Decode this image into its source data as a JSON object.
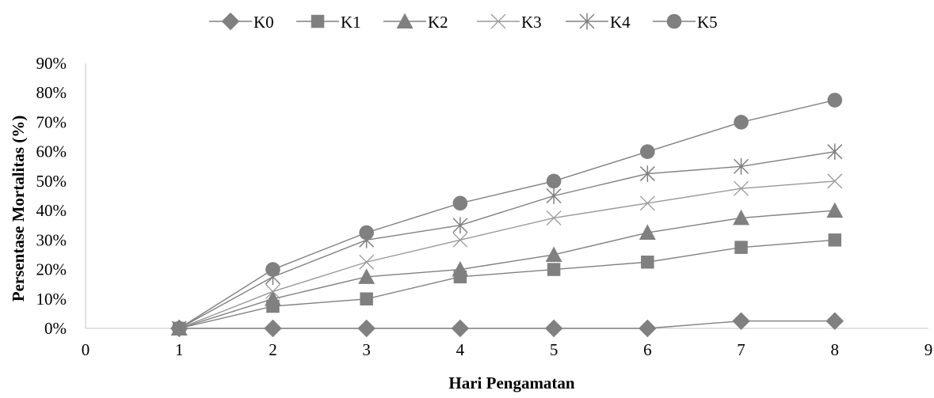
{
  "chart_data": {
    "type": "line",
    "title": "",
    "xlabel": "Hari Pengamatan",
    "ylabel": "Persentase Mortalitas (%)",
    "xlim": [
      0,
      9
    ],
    "ylim": [
      0,
      0.9
    ],
    "x_ticks": [
      0,
      1,
      2,
      3,
      4,
      5,
      6,
      7,
      8,
      9
    ],
    "y_ticks": [
      0,
      0.1,
      0.2,
      0.3,
      0.4,
      0.5,
      0.6,
      0.7,
      0.8,
      0.9
    ],
    "x_tick_labels": [
      "0",
      "1",
      "2",
      "3",
      "4",
      "5",
      "6",
      "7",
      "8",
      "9"
    ],
    "y_tick_labels": [
      "0%",
      "10%",
      "20%",
      "30%",
      "40%",
      "50%",
      "60%",
      "70%",
      "80%",
      "90%"
    ],
    "grid": false,
    "legend_position": "top-center",
    "x": [
      1,
      2,
      3,
      4,
      5,
      6,
      7,
      8
    ],
    "series": [
      {
        "name": "K0",
        "marker": "diamond",
        "color": "#808080",
        "values": [
          0,
          0,
          0,
          0,
          0,
          0,
          0.025,
          0.025
        ]
      },
      {
        "name": "K1",
        "marker": "square",
        "color": "#808080",
        "values": [
          0,
          0.075,
          0.1,
          0.175,
          0.2,
          0.225,
          0.275,
          0.3
        ]
      },
      {
        "name": "K2",
        "marker": "triangle",
        "color": "#808080",
        "values": [
          0,
          0.1,
          0.175,
          0.2,
          0.25,
          0.325,
          0.375,
          0.4
        ]
      },
      {
        "name": "K3",
        "marker": "x",
        "color": "#999999",
        "values": [
          0,
          0.125,
          0.225,
          0.3,
          0.375,
          0.425,
          0.475,
          0.5
        ]
      },
      {
        "name": "K4",
        "marker": "star",
        "color": "#808080",
        "values": [
          0,
          0.175,
          0.3,
          0.35,
          0.45,
          0.525,
          0.55,
          0.6
        ]
      },
      {
        "name": "K5",
        "marker": "circle",
        "color": "#808080",
        "values": [
          0,
          0.2,
          0.325,
          0.425,
          0.5,
          0.6,
          0.7,
          0.775
        ]
      }
    ],
    "axis_color": "#d9d9d9"
  }
}
